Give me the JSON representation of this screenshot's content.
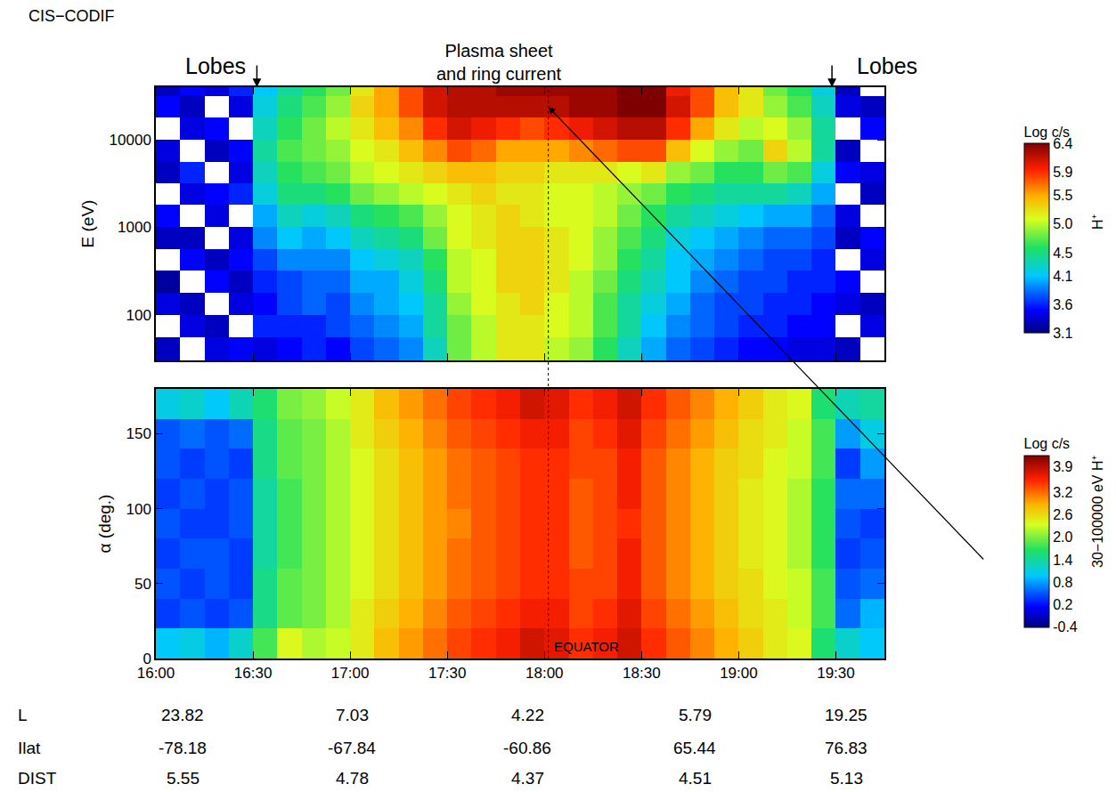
{
  "title": "CIS−CODIF",
  "header": "Plasma sheet and ring current",
  "boundaries": [
    {
      "text": "Lobes",
      "x": 16.52
    },
    {
      "text": "Lobes",
      "x": 19.48
    }
  ],
  "equator": {
    "text": "EQUATOR",
    "x": 18.02
  },
  "orbit_table": {
    "rows": [
      {
        "label": "L",
        "values": [
          23.82,
          7.03,
          4.22,
          5.79,
          19.25
        ]
      },
      {
        "label": "Ilat",
        "values": [
          -78.18,
          -67.84,
          -60.86,
          65.44,
          76.83
        ]
      },
      {
        "label": "DIST",
        "values": [
          5.55,
          4.78,
          4.37,
          4.51,
          5.13
        ]
      }
    ]
  },
  "chart_data": [
    {
      "type": "heatmap",
      "ylabel": "E (eV)",
      "side_label": "H⁺",
      "log": "y",
      "tick_labels": "y",
      "xlim": [
        16,
        19.75
      ],
      "xticks": [
        {
          "value": 16,
          "label": "16:00"
        },
        {
          "value": 16.5,
          "label": "16:30"
        },
        {
          "value": 17,
          "label": "17:00"
        },
        {
          "value": 17.5,
          "label": "17:30"
        },
        {
          "value": 18,
          "label": "18:00"
        },
        {
          "value": 18.5,
          "label": "18:30"
        },
        {
          "value": 19,
          "label": "19:00"
        },
        {
          "value": 19.5,
          "label": "19:30"
        }
      ],
      "ylim": [
        30,
        40000
      ],
      "yticks": [
        100,
        1000,
        10000
      ],
      "x_edges": [
        16,
        16.125,
        16.25,
        16.375,
        16.5,
        16.625,
        16.75,
        16.875,
        17,
        17.125,
        17.25,
        17.375,
        17.5,
        17.625,
        17.75,
        17.875,
        18,
        18.125,
        18.25,
        18.375,
        18.5,
        18.625,
        18.75,
        18.875,
        19,
        19.125,
        19.25,
        19.375,
        19.5,
        19.625,
        19.75
      ],
      "y_edges": [
        30,
        55,
        100,
        180,
        320,
        560,
        1000,
        1800,
        3200,
        5600,
        10000,
        18000,
        32000,
        40000
      ],
      "cells": [
        [
          3.3,
          null,
          3.4,
          3.2,
          null,
          3.3,
          3.5,
          null,
          3.3,
          3.4,
          null,
          3.5,
          3.3
        ],
        [
          null,
          3.4,
          3.3,
          null,
          3.5,
          3.3,
          null,
          3.4,
          3.6,
          null,
          3.4,
          3.3,
          3.5
        ],
        [
          3.4,
          3.3,
          null,
          3.5,
          3.3,
          null,
          3.4,
          3.5,
          null,
          3.3,
          3.5,
          null,
          3.4
        ],
        [
          3.5,
          null,
          3.4,
          3.3,
          3.5,
          3.4,
          null,
          3.6,
          3.4,
          3.5,
          null,
          3.4,
          3.6
        ],
        [
          3.4,
          3.6,
          3.5,
          3.6,
          3.7,
          3.9,
          4.0,
          4.2,
          4.3,
          4.4,
          4.3,
          4.2,
          4.1
        ],
        [
          3.5,
          3.6,
          3.7,
          3.7,
          3.9,
          4.1,
          4.3,
          4.5,
          4.6,
          4.7,
          4.6,
          4.5,
          4.4
        ],
        [
          3.6,
          3.6,
          3.8,
          3.8,
          3.9,
          4.0,
          4.2,
          4.5,
          4.7,
          4.8,
          4.8,
          4.7,
          4.6
        ],
        [
          3.5,
          3.7,
          3.7,
          3.8,
          3.9,
          4.1,
          4.3,
          4.6,
          4.8,
          4.9,
          5.0,
          4.9,
          4.8
        ],
        [
          3.7,
          3.8,
          3.9,
          4.0,
          4.1,
          4.3,
          4.5,
          4.8,
          5.0,
          5.1,
          5.2,
          5.3,
          5.2
        ],
        [
          3.8,
          3.9,
          4.0,
          4.0,
          4.2,
          4.4,
          4.6,
          4.9,
          5.1,
          5.2,
          5.4,
          5.5,
          5.5
        ],
        [
          3.9,
          4.0,
          4.1,
          4.2,
          4.3,
          4.5,
          4.7,
          5.0,
          5.2,
          5.4,
          5.6,
          5.8,
          5.8
        ],
        [
          4.3,
          4.4,
          4.4,
          4.5,
          4.6,
          4.8,
          4.9,
          5.1,
          5.3,
          5.6,
          5.9,
          6.1,
          6.1
        ],
        [
          4.8,
          4.8,
          4.9,
          5.0,
          5.0,
          5.1,
          5.1,
          5.2,
          5.4,
          5.8,
          6.1,
          6.2,
          6.2
        ],
        [
          5.0,
          5.0,
          5.1,
          5.1,
          5.1,
          5.2,
          5.2,
          5.3,
          5.4,
          5.7,
          6.0,
          6.2,
          6.2
        ],
        [
          5.2,
          5.2,
          5.2,
          5.3,
          5.3,
          5.3,
          5.3,
          5.2,
          5.3,
          5.5,
          5.9,
          6.2,
          6.3
        ],
        [
          5.2,
          5.2,
          5.3,
          5.3,
          5.3,
          5.3,
          5.2,
          5.2,
          5.3,
          5.5,
          5.8,
          6.2,
          6.3
        ],
        [
          5.0,
          5.1,
          5.1,
          5.2,
          5.2,
          5.2,
          5.1,
          5.1,
          5.2,
          5.5,
          5.9,
          6.2,
          6.3
        ],
        [
          4.9,
          5.0,
          5.0,
          5.0,
          5.1,
          5.1,
          5.1,
          5.1,
          5.2,
          5.6,
          6.0,
          6.3,
          6.3
        ],
        [
          4.6,
          4.7,
          4.7,
          4.8,
          4.9,
          4.9,
          5.0,
          5.0,
          5.2,
          5.7,
          6.1,
          6.3,
          6.3
        ],
        [
          4.3,
          4.4,
          4.4,
          4.5,
          4.6,
          4.7,
          4.8,
          4.9,
          5.1,
          5.8,
          6.2,
          6.4,
          6.4
        ],
        [
          4.0,
          4.1,
          4.2,
          4.3,
          4.4,
          4.5,
          4.6,
          4.8,
          5.2,
          5.8,
          6.2,
          6.4,
          6.4
        ],
        [
          3.8,
          3.9,
          4.0,
          4.1,
          4.1,
          4.2,
          4.4,
          4.6,
          4.9,
          5.4,
          5.9,
          6.1,
          6.0
        ],
        [
          3.7,
          3.8,
          3.8,
          3.9,
          4.0,
          4.1,
          4.3,
          4.5,
          4.8,
          5.1,
          5.5,
          5.8,
          5.8
        ],
        [
          3.6,
          3.7,
          3.7,
          3.8,
          3.9,
          4.0,
          4.2,
          4.4,
          4.6,
          4.9,
          5.2,
          5.4,
          5.4
        ],
        [
          3.5,
          3.6,
          3.7,
          3.7,
          3.8,
          3.9,
          4.1,
          4.4,
          4.6,
          4.8,
          5.0,
          5.2,
          5.2
        ],
        [
          3.5,
          3.6,
          3.6,
          3.7,
          3.7,
          3.8,
          4.0,
          4.4,
          4.8,
          5.3,
          5.1,
          4.9,
          4.8
        ],
        [
          3.4,
          3.5,
          3.6,
          3.6,
          3.7,
          3.8,
          4.0,
          4.3,
          4.7,
          5.0,
          4.9,
          4.7,
          4.6
        ],
        [
          3.4,
          3.5,
          3.5,
          3.6,
          3.6,
          3.7,
          3.8,
          4.0,
          4.2,
          4.4,
          4.4,
          4.3,
          4.2
        ],
        [
          3.3,
          null,
          3.4,
          3.5,
          null,
          3.3,
          3.4,
          null,
          3.5,
          3.3,
          null,
          3.4,
          3.3
        ],
        [
          null,
          3.4,
          3.3,
          null,
          3.4,
          3.5,
          null,
          3.3,
          3.4,
          null,
          3.5,
          3.3,
          null
        ]
      ],
      "colorbar": {
        "title": "Log c/s",
        "zlim": [
          3.1,
          6.4
        ],
        "zticks": [
          {
            "value": 6.4,
            "label": "6.4"
          },
          {
            "value": 5.9,
            "label": "5.9"
          },
          {
            "value": 5.5,
            "label": "5.5"
          },
          {
            "value": 5,
            "label": "5.0"
          },
          {
            "value": 4.5,
            "label": "4.5"
          },
          {
            "value": 4.1,
            "label": "4.1"
          },
          {
            "value": 3.6,
            "label": "3.6"
          },
          {
            "value": 3.1,
            "label": "3.1"
          }
        ]
      }
    },
    {
      "type": "heatmap",
      "ylabel": "α (deg.)",
      "side_label": "30−100000 eV H⁺",
      "xlim": [
        16,
        19.75
      ],
      "xticks": [
        {
          "value": 16,
          "label": "16:00"
        },
        {
          "value": 16.5,
          "label": "16:30"
        },
        {
          "value": 17,
          "label": "17:00"
        },
        {
          "value": 17.5,
          "label": "17:30"
        },
        {
          "value": 18,
          "label": "18:00"
        },
        {
          "value": 18.5,
          "label": "18:30"
        },
        {
          "value": 19,
          "label": "19:00"
        },
        {
          "value": 19.5,
          "label": "19:30"
        }
      ],
      "ylim": [
        0,
        180
      ],
      "yticks": [
        0,
        50,
        100,
        150
      ],
      "x_edges": [
        16,
        16.125,
        16.25,
        16.375,
        16.5,
        16.625,
        16.75,
        16.875,
        17,
        17.125,
        17.25,
        17.375,
        17.5,
        17.625,
        17.75,
        17.875,
        18,
        18.125,
        18.25,
        18.375,
        18.5,
        18.625,
        18.75,
        18.875,
        19,
        19.125,
        19.25,
        19.375,
        19.5,
        19.625,
        19.75
      ],
      "y_edges": [
        0,
        20,
        40,
        60,
        80,
        100,
        120,
        140,
        160,
        180
      ],
      "cells": [
        [
          1.0,
          0.4,
          0.5,
          0.4,
          0.5,
          0.4,
          0.5,
          0.5,
          1.1
        ],
        [
          1.1,
          0.5,
          0.4,
          0.5,
          0.4,
          0.5,
          0.4,
          0.6,
          1.2
        ],
        [
          0.9,
          0.4,
          0.5,
          0.5,
          0.4,
          0.4,
          0.5,
          0.5,
          1.0
        ],
        [
          1.2,
          0.5,
          0.4,
          0.4,
          0.5,
          0.5,
          0.4,
          0.6,
          1.3
        ],
        [
          1.8,
          1.5,
          1.5,
          1.4,
          1.4,
          1.4,
          1.5,
          1.5,
          1.6
        ],
        [
          2.4,
          1.9,
          1.9,
          1.8,
          1.8,
          1.8,
          1.9,
          1.9,
          2.0
        ],
        [
          2.2,
          2.0,
          2.0,
          2.0,
          2.0,
          2.0,
          2.0,
          2.0,
          2.1
        ],
        [
          2.3,
          2.2,
          2.2,
          2.2,
          2.2,
          2.2,
          2.2,
          2.2,
          2.3
        ],
        [
          2.5,
          2.5,
          2.4,
          2.4,
          2.4,
          2.4,
          2.4,
          2.5,
          2.5
        ],
        [
          2.8,
          2.7,
          2.6,
          2.6,
          2.6,
          2.6,
          2.6,
          2.7,
          2.8
        ],
        [
          3.0,
          2.9,
          2.8,
          2.8,
          2.8,
          2.8,
          2.8,
          2.9,
          3.0
        ],
        [
          3.2,
          3.1,
          3.0,
          3.0,
          3.0,
          3.0,
          3.0,
          3.1,
          3.2
        ],
        [
          3.4,
          3.3,
          3.2,
          3.2,
          3.1,
          3.2,
          3.2,
          3.3,
          3.4
        ],
        [
          3.5,
          3.4,
          3.3,
          3.3,
          3.3,
          3.3,
          3.3,
          3.4,
          3.5
        ],
        [
          3.6,
          3.5,
          3.4,
          3.4,
          3.4,
          3.4,
          3.4,
          3.5,
          3.6
        ],
        [
          3.8,
          3.6,
          3.5,
          3.5,
          3.5,
          3.5,
          3.5,
          3.6,
          3.8
        ],
        [
          3.7,
          3.6,
          3.5,
          3.5,
          3.5,
          3.5,
          3.5,
          3.6,
          3.7
        ],
        [
          3.5,
          3.4,
          3.4,
          3.3,
          3.3,
          3.3,
          3.4,
          3.4,
          3.5
        ],
        [
          3.6,
          3.5,
          3.4,
          3.4,
          3.4,
          3.4,
          3.4,
          3.5,
          3.6
        ],
        [
          3.8,
          3.7,
          3.6,
          3.6,
          3.5,
          3.6,
          3.6,
          3.7,
          3.8
        ],
        [
          3.5,
          3.4,
          3.3,
          3.3,
          3.3,
          3.3,
          3.3,
          3.4,
          3.5
        ],
        [
          3.3,
          3.2,
          3.1,
          3.1,
          3.1,
          3.1,
          3.1,
          3.2,
          3.3
        ],
        [
          3.1,
          3.0,
          2.9,
          2.9,
          2.9,
          2.9,
          2.9,
          3.0,
          3.1
        ],
        [
          2.9,
          2.8,
          2.7,
          2.7,
          2.7,
          2.7,
          2.7,
          2.8,
          2.9
        ],
        [
          2.7,
          2.6,
          2.6,
          2.5,
          2.5,
          2.5,
          2.6,
          2.6,
          2.7
        ],
        [
          2.5,
          2.5,
          2.4,
          2.4,
          2.4,
          2.4,
          2.4,
          2.5,
          2.5
        ],
        [
          2.4,
          2.3,
          2.3,
          2.2,
          2.2,
          2.2,
          2.3,
          2.3,
          2.4
        ],
        [
          1.6,
          1.8,
          1.8,
          1.7,
          1.7,
          1.7,
          1.8,
          1.8,
          1.6
        ],
        [
          1.2,
          0.6,
          0.5,
          0.4,
          0.5,
          0.6,
          0.4,
          0.8,
          1.3
        ],
        [
          1.0,
          0.9,
          0.6,
          0.5,
          0.4,
          0.6,
          0.8,
          1.1,
          1.4
        ]
      ],
      "colorbar": {
        "title": "Log c/s",
        "zlim": [
          -0.4,
          4.2
        ],
        "zticks": [
          {
            "value": 3.9,
            "label": "3.9"
          },
          {
            "value": 3.2,
            "label": "3.2"
          },
          {
            "value": 2.6,
            "label": "2.6"
          },
          {
            "value": 2,
            "label": "2.0"
          },
          {
            "value": 1.4,
            "label": "1.4"
          },
          {
            "value": 0.8,
            "label": "0.8"
          },
          {
            "value": 0.2,
            "label": "0.2"
          },
          {
            "value": -0.4,
            "label": "-0.4"
          }
        ]
      }
    }
  ]
}
